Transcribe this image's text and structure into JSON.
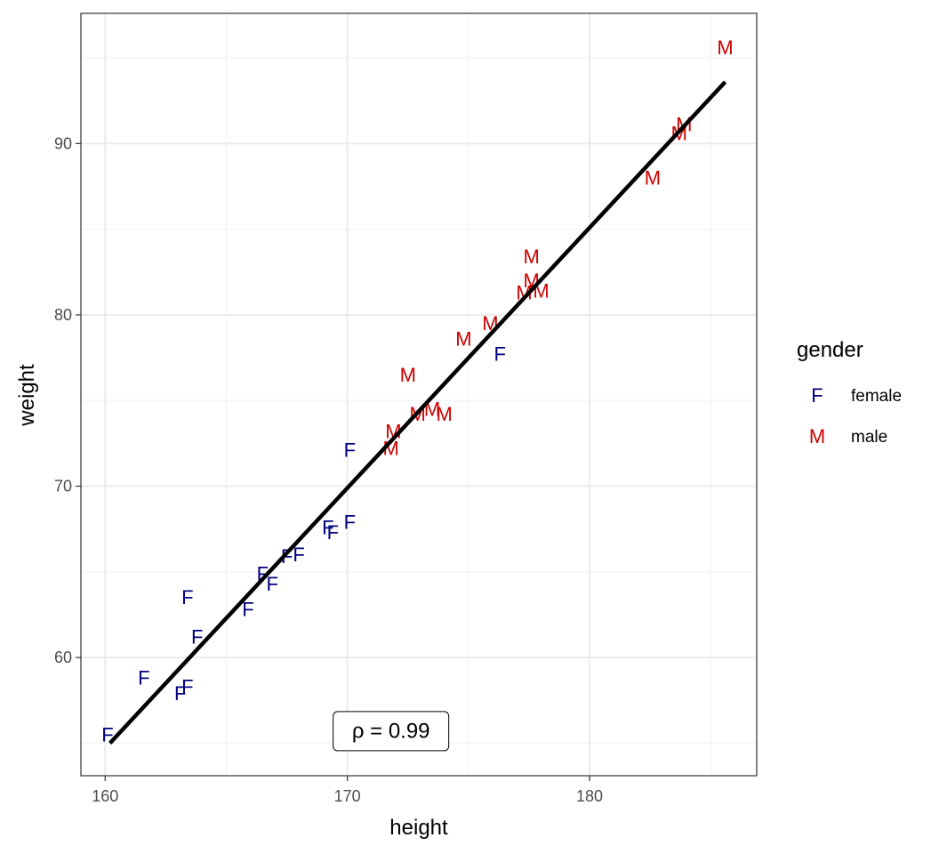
{
  "chart_data": {
    "type": "scatter",
    "title": "",
    "xlabel": "height",
    "ylabel": "weight",
    "xlim": [
      159,
      186.9
    ],
    "ylim": [
      53.1,
      97.6
    ],
    "x_ticks": [
      160,
      170,
      180
    ],
    "y_ticks": [
      60,
      70,
      80,
      90
    ],
    "x_tick_labels": [
      "160",
      "170",
      "180"
    ],
    "y_tick_labels": [
      "60",
      "70",
      "80",
      "90"
    ],
    "grid": true,
    "legend": {
      "title": "gender",
      "placement": "right",
      "entries": [
        {
          "key": "F",
          "glyph": "F",
          "label": "female",
          "color": "#00007f"
        },
        {
          "key": "M",
          "glyph": "M",
          "label": "male",
          "color": "#cc0000"
        }
      ]
    },
    "series": [
      {
        "key": "F",
        "points": [
          {
            "x": 160.1,
            "y": 55.5
          },
          {
            "x": 161.6,
            "y": 58.8
          },
          {
            "x": 163.1,
            "y": 57.9
          },
          {
            "x": 163.4,
            "y": 58.3
          },
          {
            "x": 163.4,
            "y": 63.5
          },
          {
            "x": 163.8,
            "y": 61.2
          },
          {
            "x": 165.9,
            "y": 62.8
          },
          {
            "x": 166.5,
            "y": 64.9
          },
          {
            "x": 166.9,
            "y": 64.3
          },
          {
            "x": 167.5,
            "y": 65.9
          },
          {
            "x": 168.0,
            "y": 66.0
          },
          {
            "x": 169.2,
            "y": 67.6
          },
          {
            "x": 169.4,
            "y": 67.3
          },
          {
            "x": 170.1,
            "y": 67.9
          },
          {
            "x": 170.1,
            "y": 72.1
          },
          {
            "x": 176.3,
            "y": 77.7
          }
        ]
      },
      {
        "key": "M",
        "points": [
          {
            "x": 171.8,
            "y": 72.2
          },
          {
            "x": 171.9,
            "y": 73.2
          },
          {
            "x": 172.5,
            "y": 76.5
          },
          {
            "x": 172.9,
            "y": 74.2
          },
          {
            "x": 173.5,
            "y": 74.5
          },
          {
            "x": 174.0,
            "y": 74.2
          },
          {
            "x": 174.8,
            "y": 78.6
          },
          {
            "x": 175.9,
            "y": 79.5
          },
          {
            "x": 177.3,
            "y": 81.3
          },
          {
            "x": 177.6,
            "y": 82.0
          },
          {
            "x": 177.6,
            "y": 83.4
          },
          {
            "x": 178.0,
            "y": 81.4
          },
          {
            "x": 182.6,
            "y": 88.0
          },
          {
            "x": 183.7,
            "y": 90.6
          },
          {
            "x": 183.9,
            "y": 91.1
          },
          {
            "x": 185.6,
            "y": 95.6
          }
        ]
      }
    ],
    "fit_line": {
      "x1": 160.2,
      "y1": 55.0,
      "x2": 185.6,
      "y2": 93.6,
      "color": "#000000"
    },
    "annotation": {
      "text": "ρ = 0.99",
      "x": 171.8,
      "y": 55.7
    }
  }
}
